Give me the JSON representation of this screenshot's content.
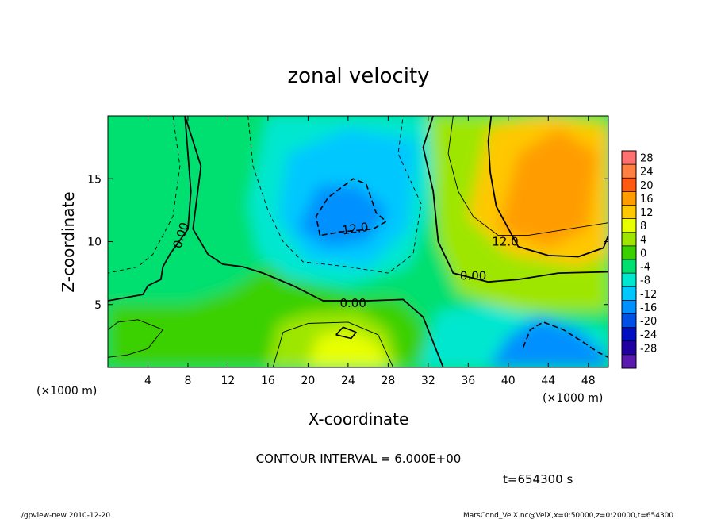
{
  "chart_data": {
    "type": "heatmap",
    "title": "zonal velocity",
    "xlabel": "X-coordinate",
    "ylabel": "Z-coordinate",
    "x_unit": "(×1000 m)",
    "y_unit": "(×1000 m)",
    "xlim": [
      0,
      50
    ],
    "ylim": [
      0,
      20
    ],
    "x_ticks": [
      4,
      8,
      12,
      16,
      20,
      24,
      28,
      32,
      36,
      40,
      44,
      48
    ],
    "y_ticks": [
      5,
      10,
      15
    ],
    "colorbar_levels": [
      28,
      24,
      20,
      16,
      12,
      8,
      4,
      0,
      -4,
      -8,
      -12,
      -16,
      -20,
      -24,
      -28
    ],
    "colorbar_colors": [
      "#ff7070",
      "#ff8040",
      "#ff5a10",
      "#ff9d00",
      "#ffc800",
      "#e7ff00",
      "#9ee600",
      "#3ad000",
      "#00e070",
      "#00e7d0",
      "#00c8ff",
      "#0090ff",
      "#0050e6",
      "#0010c0",
      "#2000a0",
      "#5a1ab0"
    ],
    "contour_labels": [
      {
        "text": "0.00"
      },
      {
        "text": "-12.0"
      },
      {
        "text": "12.0"
      },
      {
        "text": "0.00"
      },
      {
        "text": "0.00"
      }
    ],
    "field_features": [
      {
        "kind": "max",
        "x": 43.5,
        "z": 13.0,
        "value": 19
      },
      {
        "kind": "max",
        "x": 23.5,
        "z": 1.5,
        "value": 11
      },
      {
        "kind": "max",
        "x": 4.0,
        "z": 3.0,
        "value": 4
      },
      {
        "kind": "min",
        "x": 22.0,
        "z": 12.5,
        "value": -15
      },
      {
        "kind": "min",
        "x": 44.0,
        "z": 2.0,
        "value": -17
      },
      {
        "kind": "min",
        "x": 27.0,
        "z": 15.0,
        "value": -9
      }
    ]
  },
  "annotations": {
    "contour_interval": "CONTOUR INTERVAL = 6.000E+00",
    "time": "t=654300 s",
    "footer_left": "./gpview-new  2010-12-20",
    "footer_right": "MarsCond_VelX.nc@VelX,x=0:50000,z=0:20000,t=654300"
  }
}
